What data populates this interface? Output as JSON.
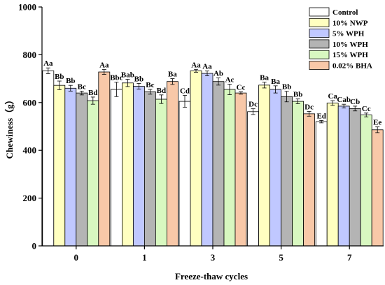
{
  "chart_data": {
    "type": "bar",
    "xlabel": "Freeze-thaw cycles",
    "ylabel": "Chewiness（g）",
    "ylim": [
      0,
      1000
    ],
    "yticks": [
      0,
      200,
      400,
      600,
      800,
      1000
    ],
    "categories": [
      "0",
      "1",
      "3",
      "5",
      "7"
    ],
    "grid": false,
    "legend_position": "top-right",
    "series": [
      {
        "name": "Control",
        "color": "#ffffff",
        "values": [
          733,
          655,
          605,
          562,
          520
        ],
        "errors": [
          12,
          30,
          25,
          12,
          5
        ],
        "labels": [
          "Aa",
          "Bbc",
          "Cd",
          "Dc",
          "Ed"
        ]
      },
      {
        "name": "10% NWP",
        "color": "#ffffc0",
        "values": [
          672,
          682,
          733,
          673,
          598
        ],
        "errors": [
          18,
          15,
          6,
          12,
          10
        ],
        "labels": [
          "Bb",
          "Bab",
          "Aa",
          "Ba",
          "Ca"
        ]
      },
      {
        "name": "5% WPH",
        "color": "#c0c8ff",
        "values": [
          660,
          668,
          722,
          655,
          585
        ],
        "errors": [
          12,
          12,
          10,
          15,
          8
        ],
        "labels": [
          "Bb",
          "Bb",
          "Aa",
          "Ba",
          "Cab"
        ]
      },
      {
        "name": "10% WPH",
        "color": "#b4b4b4",
        "values": [
          640,
          645,
          688,
          625,
          575
        ],
        "errors": [
          8,
          10,
          15,
          22,
          10
        ],
        "labels": [
          "Bc",
          "Bc",
          "Ab",
          "Bb",
          "Cb"
        ]
      },
      {
        "name": "15% WPH",
        "color": "#d8f8c0",
        "values": [
          608,
          614,
          655,
          605,
          548
        ],
        "errors": [
          15,
          18,
          22,
          10,
          8
        ],
        "labels": [
          "Bd",
          "Bd",
          "Ac",
          "Bb",
          "Cc"
        ]
      },
      {
        "name": "0.02% BHA",
        "color": "#f8c8a8",
        "values": [
          728,
          688,
          640,
          553,
          486
        ],
        "errors": [
          10,
          12,
          5,
          10,
          12
        ],
        "labels": [
          "Aa",
          "Ba",
          "Cc",
          "Dc",
          "Ee"
        ]
      }
    ]
  }
}
